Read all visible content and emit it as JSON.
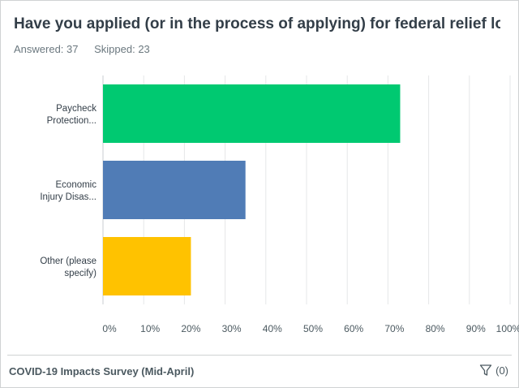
{
  "question": {
    "title": "Have you applied (or in the process of applying) for federal relief lo...",
    "answered": "Answered: 37",
    "skipped": "Skipped: 23"
  },
  "footer": {
    "survey_name": "COVID-19 Impacts Survey (Mid-April)",
    "filter_label": "(0)",
    "filter_icon": "funnel-icon"
  },
  "chart_data": {
    "type": "bar",
    "orientation": "horizontal",
    "categories": [
      [
        "Paycheck",
        "Protection..."
      ],
      [
        "Economic",
        "Injury Disas..."
      ],
      [
        "Other (please",
        "specify)"
      ]
    ],
    "values": [
      73,
      35,
      21.6
    ],
    "colors": [
      "#00c971",
      "#507cb6",
      "#ffc200"
    ],
    "xlim": [
      0,
      100
    ],
    "ticks": [
      "0%",
      "10%",
      "20%",
      "30%",
      "40%",
      "50%",
      "60%",
      "70%",
      "80%",
      "90%",
      "100%"
    ],
    "grid": true
  }
}
